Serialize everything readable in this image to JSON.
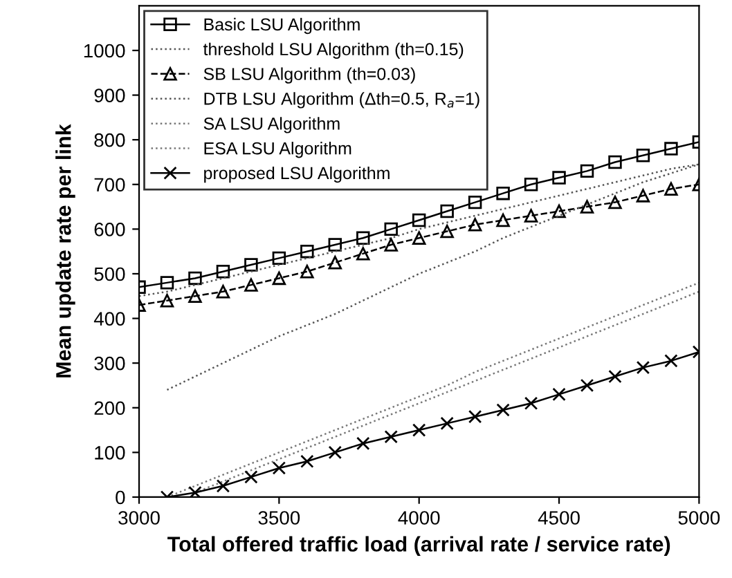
{
  "chart_data": {
    "type": "line",
    "xlabel": "Total offered traffic load (arrival rate / service rate)",
    "ylabel": "Mean update rate per link",
    "x": [
      3000,
      3100,
      3200,
      3300,
      3400,
      3500,
      3600,
      3700,
      3800,
      3900,
      4000,
      4100,
      4200,
      4300,
      4400,
      4500,
      4600,
      4700,
      4800,
      4900,
      5000
    ],
    "xlim": [
      3000,
      5000
    ],
    "xticks": [
      3000,
      3500,
      4000,
      4500,
      5000
    ],
    "ylim": [
      0,
      1100
    ],
    "yticks": [
      0,
      100,
      200,
      300,
      400,
      500,
      600,
      700,
      800,
      900,
      1000
    ],
    "grid": false,
    "legend": "top left",
    "series": [
      {
        "name": "Basic LSU Algorithm",
        "color": "#000000",
        "marker": "square",
        "line_style": "solid",
        "values": [
          470,
          480,
          490,
          505,
          520,
          535,
          550,
          565,
          580,
          600,
          620,
          640,
          660,
          680,
          700,
          715,
          730,
          750,
          765,
          780,
          795
        ]
      },
      {
        "name": "threshold LSU Algorithm (th=0.15)",
        "color": "#555555",
        "marker": "none",
        "line_style": "dotted",
        "values": [
          450,
          460,
          475,
          490,
          505,
          520,
          535,
          550,
          565,
          580,
          600,
          615,
          630,
          645,
          660,
          675,
          690,
          705,
          720,
          735,
          745
        ]
      },
      {
        "name": "SB LSU Algorithm (th=0.03)",
        "color": "#000000",
        "marker": "triangle",
        "line_style": "dashed",
        "values": [
          430,
          440,
          450,
          460,
          475,
          490,
          505,
          525,
          545,
          565,
          580,
          595,
          610,
          620,
          630,
          640,
          650,
          660,
          675,
          690,
          700
        ]
      },
      {
        "name": "DTB LSU Algorithm (Δth=0.5, R$_{a}$=1)",
        "color": "#555555",
        "marker": "none",
        "line_style": "dotted",
        "values": [
          null,
          240,
          270,
          300,
          330,
          360,
          385,
          410,
          440,
          470,
          500,
          525,
          550,
          580,
          605,
          630,
          655,
          680,
          705,
          725,
          745
        ]
      },
      {
        "name": "SA LSU Algorithm",
        "color": "#777777",
        "marker": "none",
        "line_style": "dotted",
        "values": [
          null,
          0,
          25,
          50,
          75,
          100,
          125,
          150,
          175,
          200,
          225,
          250,
          280,
          305,
          330,
          355,
          380,
          405,
          430,
          455,
          480
        ]
      },
      {
        "name": "ESA LSU Algorithm",
        "color": "#777777",
        "marker": "none",
        "line_style": "dotted",
        "values": [
          null,
          null,
          10,
          35,
          60,
          85,
          110,
          135,
          160,
          185,
          210,
          235,
          260,
          285,
          310,
          335,
          360,
          385,
          410,
          435,
          460
        ]
      },
      {
        "name": "proposed LSU Algorithm",
        "color": "#000000",
        "marker": "cross",
        "line_style": "solid",
        "values": [
          null,
          0,
          10,
          25,
          45,
          65,
          80,
          100,
          120,
          135,
          150,
          165,
          180,
          195,
          210,
          230,
          250,
          270,
          290,
          305,
          325
        ]
      }
    ]
  }
}
